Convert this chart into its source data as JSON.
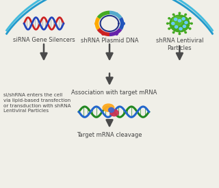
{
  "background_color": "#f0efe8",
  "labels": {
    "sirna": "siRNA Gene Silencers",
    "shrna_plasmid": "shRNA Plasmid DNA",
    "shrna_lentiviral": "shRNA Lentiviral\nParticles",
    "association": "Association with target mRNA",
    "cleavage": "Target mRNA cleavage",
    "cell_entry": "si/shRNA enters the cell\nvia lipid-based transfection\nor transduction with shRNA\nLentiviral Particles"
  },
  "arrow_color": "#4a4a4a",
  "arc_color_outer": "#2299cc",
  "arc_color_inner": "#44bbdd",
  "text_color": "#444444",
  "font_size": 6.0,
  "sirna_colors": [
    "#cc2222",
    "#2244bb"
  ],
  "plasmid_colors": [
    "#6622aa",
    "#2255bb",
    "#55aacc",
    "#44aa22",
    "#ffaa00",
    "#cc2222"
  ],
  "lentiviral_color": "#44aa22",
  "lentiviral_dot_color": "#66ccff",
  "mrna_colors": [
    "#228822",
    "#2266cc"
  ],
  "risc_colors": [
    "#ffaa22",
    "#cc3355",
    "#4466cc"
  ]
}
